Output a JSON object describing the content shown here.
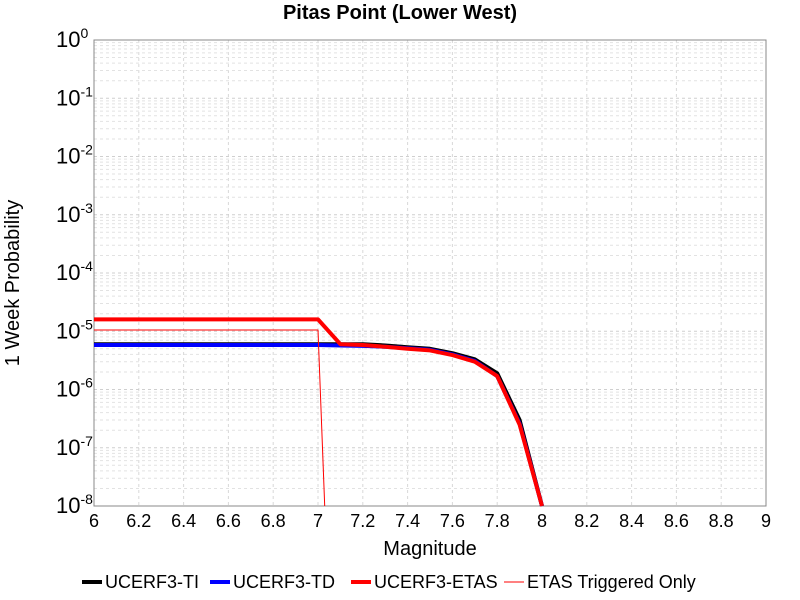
{
  "chart_data": {
    "type": "line",
    "title": "Pitas Point (Lower West)",
    "xlabel": "Magnitude",
    "ylabel": "1 Week Probability",
    "xlim": [
      6,
      9
    ],
    "ylim": [
      1e-08,
      1
    ],
    "y_scale": "log",
    "grid": true,
    "legend_position": "bottom",
    "x_ticks": [
      "6",
      "6.2",
      "6.4",
      "6.6",
      "6.8",
      "7",
      "7.2",
      "7.4",
      "7.6",
      "7.8",
      "8",
      "8.2",
      "8.4",
      "8.6",
      "8.8",
      "9"
    ],
    "y_ticks": [
      {
        "base": "10",
        "exp": "0"
      },
      {
        "base": "10",
        "exp": "-1"
      },
      {
        "base": "10",
        "exp": "-2"
      },
      {
        "base": "10",
        "exp": "-3"
      },
      {
        "base": "10",
        "exp": "-4"
      },
      {
        "base": "10",
        "exp": "-5"
      },
      {
        "base": "10",
        "exp": "-6"
      },
      {
        "base": "10",
        "exp": "-7"
      },
      {
        "base": "10",
        "exp": "-8"
      }
    ],
    "series": [
      {
        "name": "UCERF3-TI",
        "color": "#000000",
        "width": 4,
        "x": [
          6.0,
          6.5,
          7.0,
          7.1,
          7.2,
          7.3,
          7.4,
          7.5,
          7.6,
          7.7,
          7.8,
          7.9,
          8.0
        ],
        "y": [
          6e-06,
          6e-06,
          6e-06,
          6e-06,
          6e-06,
          5.7e-06,
          5.3e-06,
          5e-06,
          4.2e-06,
          3.3e-06,
          1.9e-06,
          3e-07,
          1e-08
        ]
      },
      {
        "name": "UCERF3-TD",
        "color": "#0000ff",
        "width": 4,
        "x": [
          6.0,
          6.5,
          7.0,
          7.1,
          7.2,
          7.3,
          7.4,
          7.5,
          7.6,
          7.7,
          7.8,
          7.9,
          8.0
        ],
        "y": [
          5.8e-06,
          5.8e-06,
          5.8e-06,
          5.7e-06,
          5.6e-06,
          5.4e-06,
          5.1e-06,
          4.8e-06,
          4e-06,
          3.1e-06,
          1.7e-06,
          2.6e-07,
          1e-08
        ]
      },
      {
        "name": "UCERF3-ETAS",
        "color": "#ff0000",
        "width": 4,
        "x": [
          6.0,
          7.0,
          7.1,
          7.2,
          7.3,
          7.4,
          7.5,
          7.6,
          7.7,
          7.8,
          7.9,
          8.0
        ],
        "y": [
          1.6e-05,
          1.6e-05,
          6e-06,
          5.8e-06,
          5.4e-06,
          5e-06,
          4.7e-06,
          3.9e-06,
          3e-06,
          1.7e-06,
          2.5e-07,
          1e-08
        ]
      },
      {
        "name": "ETAS Triggered Only",
        "color": "#ff0000",
        "width": 1,
        "x": [
          6.0,
          7.0,
          7.03
        ],
        "y": [
          1.05e-05,
          1.05e-05,
          1e-08
        ]
      }
    ]
  }
}
